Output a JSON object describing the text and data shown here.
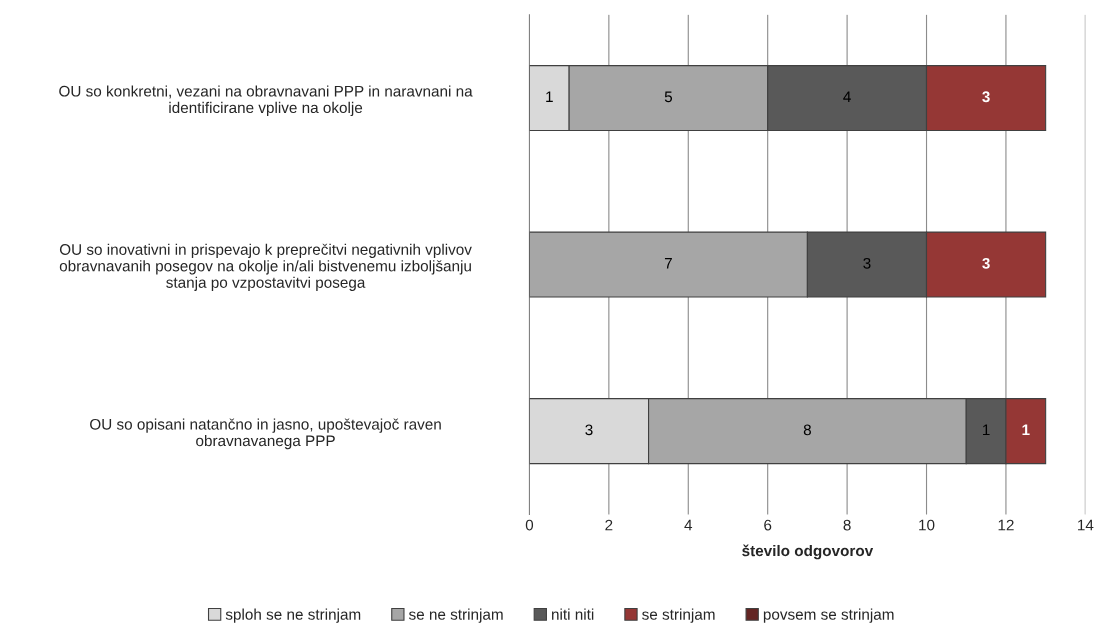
{
  "chart_data": {
    "type": "bar",
    "orientation": "horizontal",
    "stacked": true,
    "categories": [
      "OU so konkretni, vezani na obravnavani PPP in naravnani na\nidentificirane vplive na okolje",
      "OU so inovativni in prispevajo k preprečitvi negativnih vplivov\nobravnavanih posegov na okolje in/ali bistvenemu izboljšanju\nstanja po vzpostavitvi posega",
      "OU so opisani natančno in jasno, upoštevajoč raven\nobravnavanega PPP"
    ],
    "series": [
      {
        "name": "sploh se ne strinjam",
        "color": "#d9d9d9",
        "values": [
          1,
          0,
          3
        ],
        "value_labels": [
          "1",
          null,
          "3"
        ]
      },
      {
        "name": "se ne strinjam",
        "color": "#a6a6a6",
        "values": [
          5,
          7,
          8
        ],
        "value_labels": [
          "5",
          "7",
          "8"
        ]
      },
      {
        "name": "niti niti",
        "color": "#595959",
        "values": [
          4,
          3,
          1
        ],
        "value_labels": [
          "4",
          "3",
          "1"
        ]
      },
      {
        "name": "se strinjam",
        "color": "#953735",
        "values": [
          3,
          3,
          1
        ],
        "value_labels": [
          "3",
          "3",
          "1"
        ]
      },
      {
        "name": "povsem se strinjam",
        "color": "#632523",
        "values": [
          0,
          0,
          0
        ],
        "value_labels": [
          null,
          null,
          null
        ]
      }
    ],
    "xlabel": "število odgovorov",
    "xlim": [
      0,
      14
    ],
    "xticks": [
      0,
      2,
      4,
      6,
      8,
      10,
      12,
      14
    ],
    "grid": "x",
    "legend": "bottom"
  }
}
